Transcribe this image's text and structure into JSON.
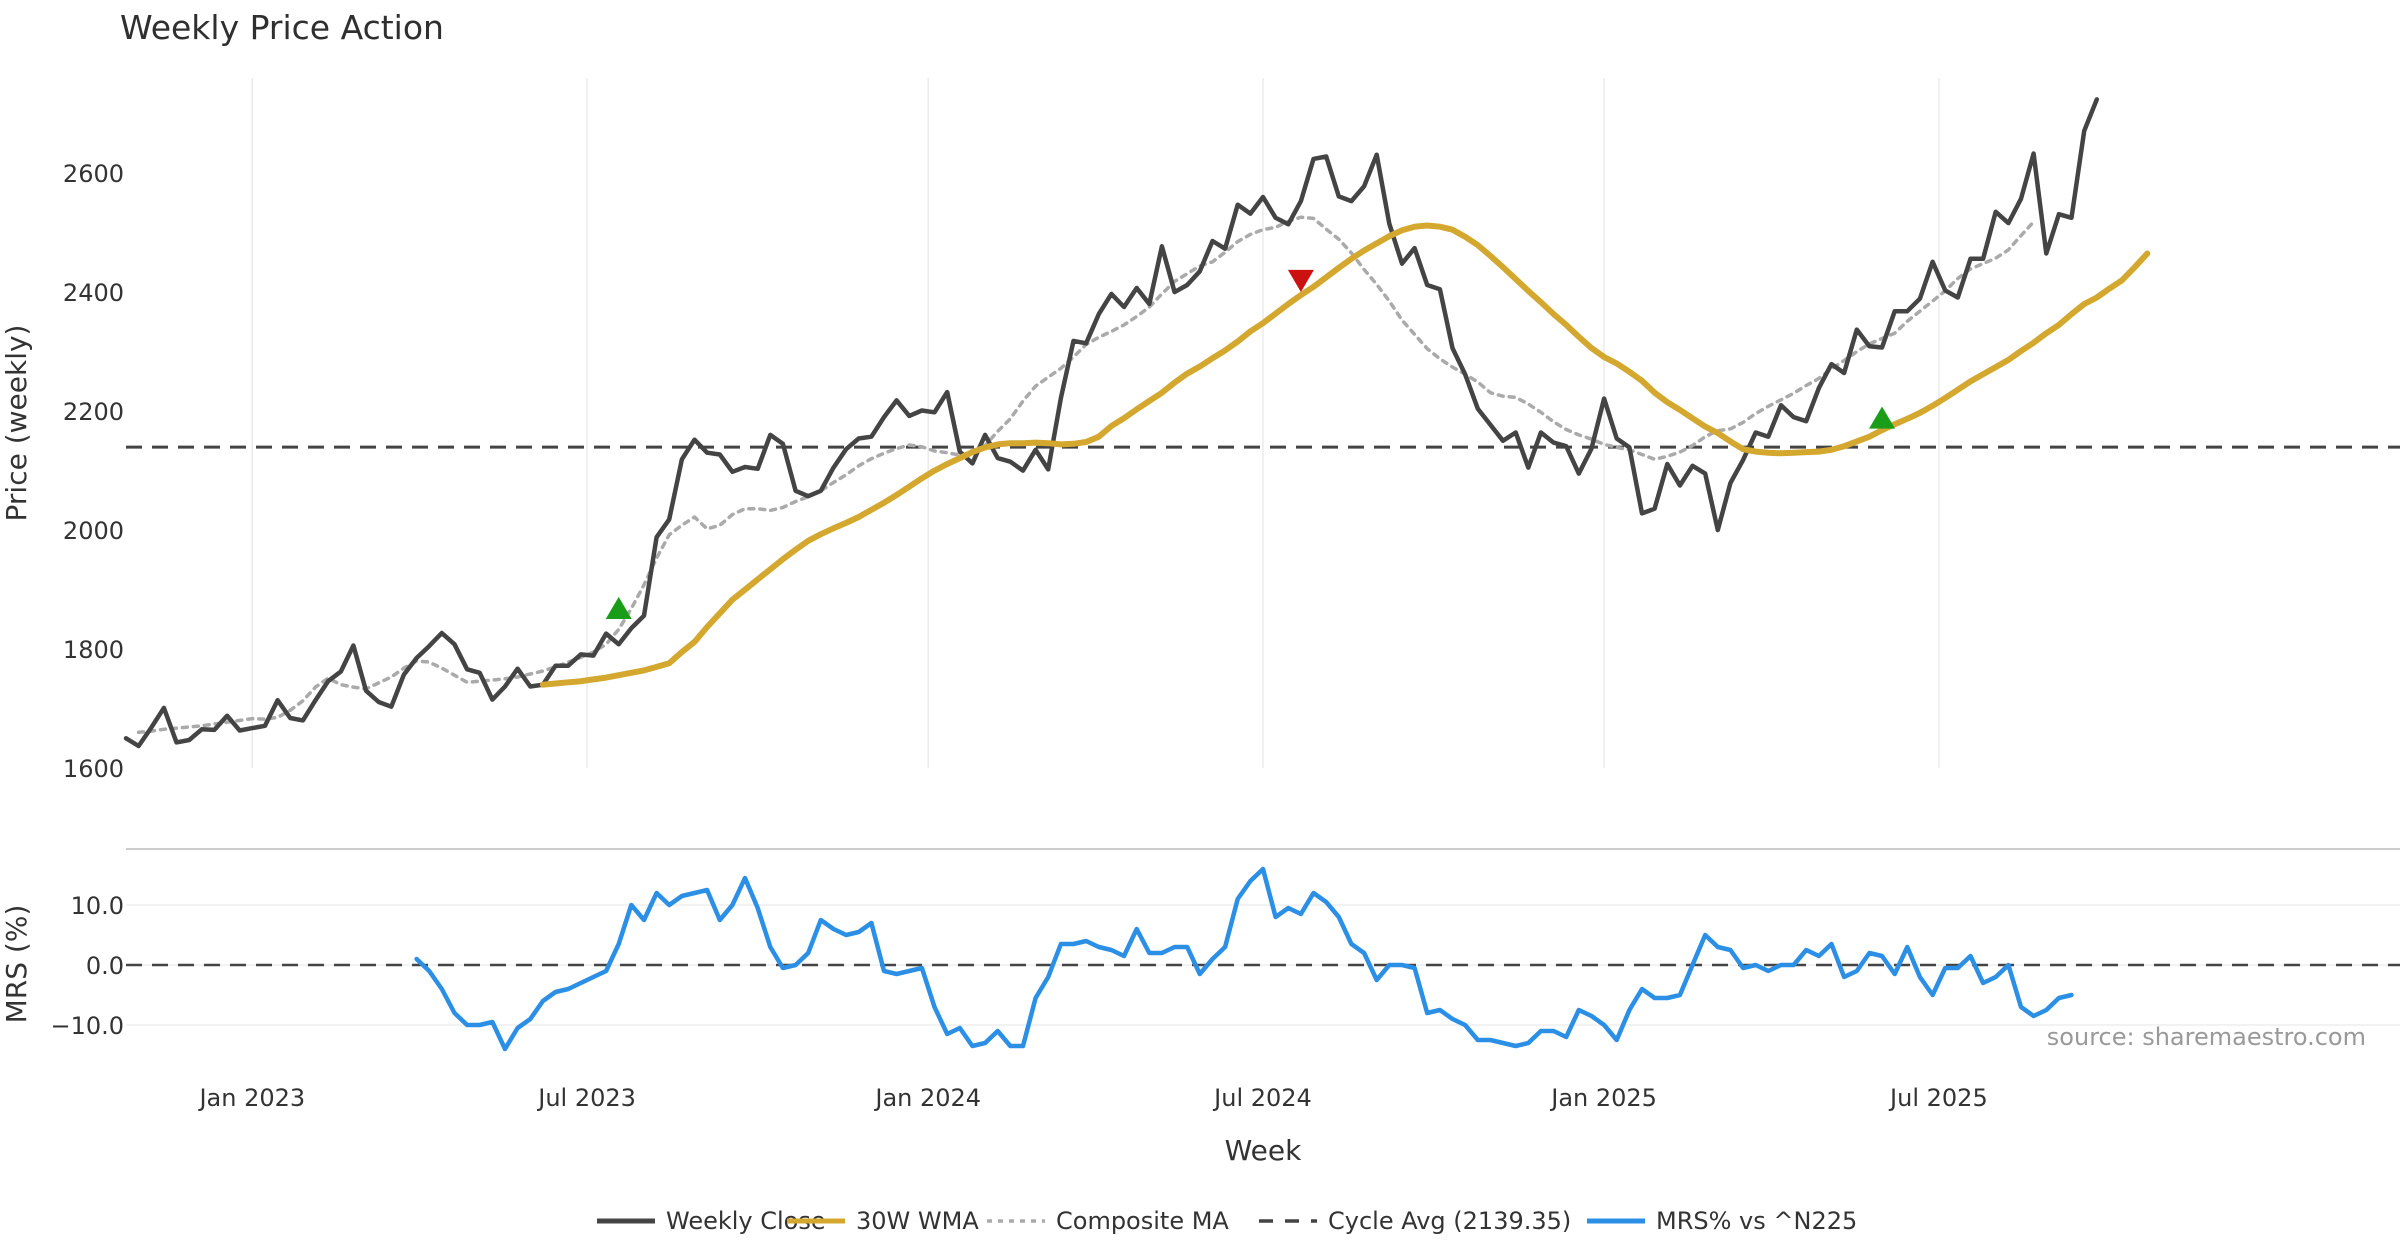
{
  "chart_data": {
    "title": "Weekly Price Action",
    "type": "line",
    "x_label": "Week",
    "x_ticks": [
      "Jan 2023",
      "Jul 2023",
      "Jan 2024",
      "Jul 2024",
      "Jan 2025",
      "Jul 2025"
    ],
    "price_panel": {
      "y_label": "Price (weekly)",
      "y_ticks": [
        "1600",
        "1800",
        "2000",
        "2200",
        "2400",
        "2600"
      ],
      "ylim": [
        1600,
        2760
      ],
      "x_range_weeks": [
        0,
        180
      ],
      "series": [
        {
          "name": "Weekly Close",
          "color": "#444444",
          "style": "solid",
          "start_week": 0,
          "values": [
            1650,
            1637,
            1668,
            1701,
            1643,
            1647,
            1665,
            1664,
            1688,
            1663,
            1667,
            1671,
            1714,
            1684,
            1680,
            1714,
            1746,
            1762,
            1806,
            1730,
            1711,
            1703,
            1757,
            1785,
            1805,
            1827,
            1808,
            1766,
            1760,
            1715,
            1737,
            1767,
            1737,
            1740,
            1772,
            1772,
            1791,
            1789,
            1826,
            1808,
            1835,
            1856,
            1988,
            2018,
            2119,
            2152,
            2130,
            2127,
            2098,
            2106,
            2103,
            2160,
            2145,
            2066,
            2057,
            2066,
            2105,
            2136,
            2154,
            2157,
            2190,
            2218,
            2192,
            2201,
            2198,
            2232,
            2132,
            2112,
            2160,
            2121,
            2115,
            2100,
            2135,
            2102,
            2222,
            2318,
            2314,
            2363,
            2397,
            2375,
            2407,
            2380,
            2477,
            2400,
            2412,
            2435,
            2486,
            2473,
            2547,
            2532,
            2560,
            2525,
            2514,
            2553,
            2624,
            2628,
            2561,
            2553,
            2578,
            2631,
            2515,
            2448,
            2474,
            2412,
            2405,
            2306,
            2262,
            2204,
            2177,
            2150,
            2164,
            2105,
            2164,
            2147,
            2141,
            2095,
            2137,
            2221,
            2154,
            2139,
            2028,
            2036,
            2111,
            2075,
            2108,
            2095,
            2000,
            2079,
            2118,
            2164,
            2157,
            2210,
            2190,
            2183,
            2239,
            2279,
            2264,
            2337,
            2309,
            2307,
            2368,
            2368,
            2389,
            2451,
            2403,
            2391,
            2456,
            2456,
            2535,
            2516,
            2557,
            2633,
            2465,
            2531,
            2525,
            2671,
            2724
          ]
        },
        {
          "name": "30W WMA",
          "color": "#d4a82e",
          "style": "solid",
          "start_week": 33,
          "values": [
            1740,
            1742,
            1744,
            1746,
            1749,
            1752,
            1756,
            1760,
            1764,
            1770,
            1776,
            1795,
            1812,
            1837,
            1860,
            1883,
            1900,
            1917,
            1934,
            1951,
            1967,
            1982,
            1993,
            2003,
            2012,
            2022,
            2034,
            2046,
            2059,
            2073,
            2087,
            2100,
            2111,
            2121,
            2131,
            2139,
            2144,
            2146,
            2146,
            2147,
            2146,
            2144,
            2145,
            2148,
            2157,
            2175,
            2188,
            2203,
            2217,
            2231,
            2248,
            2263,
            2275,
            2289,
            2302,
            2317,
            2334,
            2348,
            2364,
            2380,
            2395,
            2409,
            2425,
            2441,
            2456,
            2470,
            2482,
            2494,
            2504,
            2510,
            2512,
            2510,
            2505,
            2493,
            2479,
            2461,
            2442,
            2422,
            2402,
            2383,
            2363,
            2345,
            2325,
            2306,
            2291,
            2280,
            2266,
            2251,
            2231,
            2215,
            2202,
            2188,
            2174,
            2163,
            2149,
            2136,
            2132,
            2130,
            2129,
            2130,
            2131,
            2132,
            2135,
            2141,
            2149,
            2157,
            2168,
            2178,
            2187,
            2197,
            2209,
            2222,
            2236,
            2250,
            2262,
            2274,
            2286,
            2301,
            2315,
            2331,
            2345,
            2363,
            2380,
            2391,
            2406,
            2420,
            2442,
            2465
          ]
        },
        {
          "name": "Composite MA",
          "color": "#aaaaaa",
          "style": "dotted",
          "start_week": 1,
          "values": [
            1660,
            1662,
            1665,
            1667,
            1669,
            1671,
            1674,
            1677,
            1680,
            1683,
            1682,
            1685,
            1697,
            1713,
            1736,
            1751,
            1740,
            1736,
            1733,
            1743,
            1753,
            1768,
            1780,
            1778,
            1768,
            1756,
            1744,
            1746,
            1748,
            1750,
            1753,
            1758,
            1763,
            1770,
            1778,
            1786,
            1795,
            1808,
            1833,
            1868,
            1908,
            1953,
            1992,
            2008,
            2022,
            2002,
            2008,
            2026,
            2036,
            2036,
            2033,
            2038,
            2048,
            2056,
            2066,
            2080,
            2093,
            2108,
            2120,
            2129,
            2137,
            2143,
            2140,
            2133,
            2130,
            2126,
            2130,
            2142,
            2166,
            2187,
            2217,
            2242,
            2257,
            2272,
            2291,
            2312,
            2324,
            2334,
            2345,
            2359,
            2375,
            2397,
            2418,
            2431,
            2444,
            2451,
            2467,
            2485,
            2497,
            2505,
            2509,
            2519,
            2526,
            2524,
            2506,
            2489,
            2466,
            2438,
            2413,
            2385,
            2353,
            2329,
            2305,
            2288,
            2274,
            2262,
            2249,
            2231,
            2225,
            2223,
            2212,
            2198,
            2182,
            2169,
            2160,
            2153,
            2144,
            2139,
            2135,
            2127,
            2119,
            2124,
            2131,
            2142,
            2157,
            2167,
            2170,
            2181,
            2196,
            2208,
            2219,
            2230,
            2243,
            2255,
            2271,
            2285,
            2300,
            2313,
            2322,
            2331,
            2351,
            2368,
            2385,
            2402,
            2423,
            2439,
            2448,
            2457,
            2471,
            2495,
            2518
          ]
        }
      ],
      "reference_lines": [
        {
          "name": "Cycle Avg (2139.35)",
          "value": 2139.35,
          "color": "#444444",
          "style": "dashed"
        }
      ],
      "markers": [
        {
          "type": "buy",
          "symbol": "triangle-up",
          "color": "#1a9e1a",
          "week": 39,
          "value": 1868
        },
        {
          "type": "sell",
          "symbol": "triangle-down",
          "color": "#cc1111",
          "week": 93,
          "value": 2420
        },
        {
          "type": "buy",
          "symbol": "triangle-up",
          "color": "#1a9e1a",
          "week": 139,
          "value": 2188
        }
      ]
    },
    "mrs_panel": {
      "y_label": "MRS (%)",
      "y_ticks": [
        "10.0",
        "0.0",
        "−10.0"
      ],
      "ylim": [
        -14.5,
        17.5
      ],
      "series": [
        {
          "name": "MRS% vs ^N225",
          "color": "#2b8fe6",
          "style": "solid",
          "start_week": 23,
          "values": [
            1,
            -1,
            -4,
            -8,
            -10,
            -10,
            -9.5,
            -14,
            -10.5,
            -9,
            -6,
            -4.5,
            -4,
            -3,
            -2,
            -1,
            3.5,
            10,
            7.5,
            12,
            10,
            11.5,
            12,
            12.5,
            7.5,
            10,
            14.5,
            9.5,
            3,
            -0.5,
            0,
            2,
            7.5,
            6,
            5,
            5.5,
            7,
            -1,
            -1.5,
            -1,
            -0.5,
            -7,
            -11.5,
            -10.5,
            -13.5,
            -13,
            -11,
            -13.5,
            -13.5,
            -5.5,
            -2,
            3.5,
            3.5,
            4,
            3,
            2.5,
            1.5,
            6,
            2,
            2,
            3,
            3,
            -1.5,
            1,
            3,
            11,
            14,
            16,
            8,
            9.5,
            8.5,
            12,
            10.5,
            8,
            3.5,
            2,
            -2.5,
            0,
            0,
            -0.5,
            -8,
            -7.5,
            -9,
            -10,
            -12.5,
            -12.5,
            -13,
            -13.5,
            -13,
            -11,
            -11,
            -12,
            -7.5,
            -8.5,
            -10,
            -12.5,
            -7.5,
            -4,
            -5.5,
            -5.5,
            -5,
            0,
            5,
            3,
            2.5,
            -0.5,
            0,
            -1,
            0,
            0,
            2.5,
            1.5,
            3.5,
            -2,
            -1,
            2,
            1.5,
            -1.5,
            3,
            -2,
            -5,
            -0.5,
            -0.5,
            1.5,
            -3,
            -2,
            0,
            -7,
            -8.5,
            -7.5,
            -5.5,
            -5
          ]
        }
      ],
      "reference_lines": [
        {
          "value": 0,
          "color": "#444444",
          "style": "dashed"
        }
      ]
    },
    "legend": {
      "placement": "bottom-center",
      "entries": [
        {
          "label": "Weekly Close",
          "color": "#444444",
          "style": "solid"
        },
        {
          "label": "30W WMA",
          "color": "#d4a82e",
          "style": "solid"
        },
        {
          "label": "Composite MA",
          "color": "#aaaaaa",
          "style": "dotted"
        },
        {
          "label": "Cycle Avg (2139.35)",
          "color": "#444444",
          "style": "dashed"
        },
        {
          "label": "MRS% vs ^N225",
          "color": "#2b8fe6",
          "style": "solid"
        }
      ]
    },
    "source_note": "source: sharemaestro.com",
    "grid": true
  }
}
